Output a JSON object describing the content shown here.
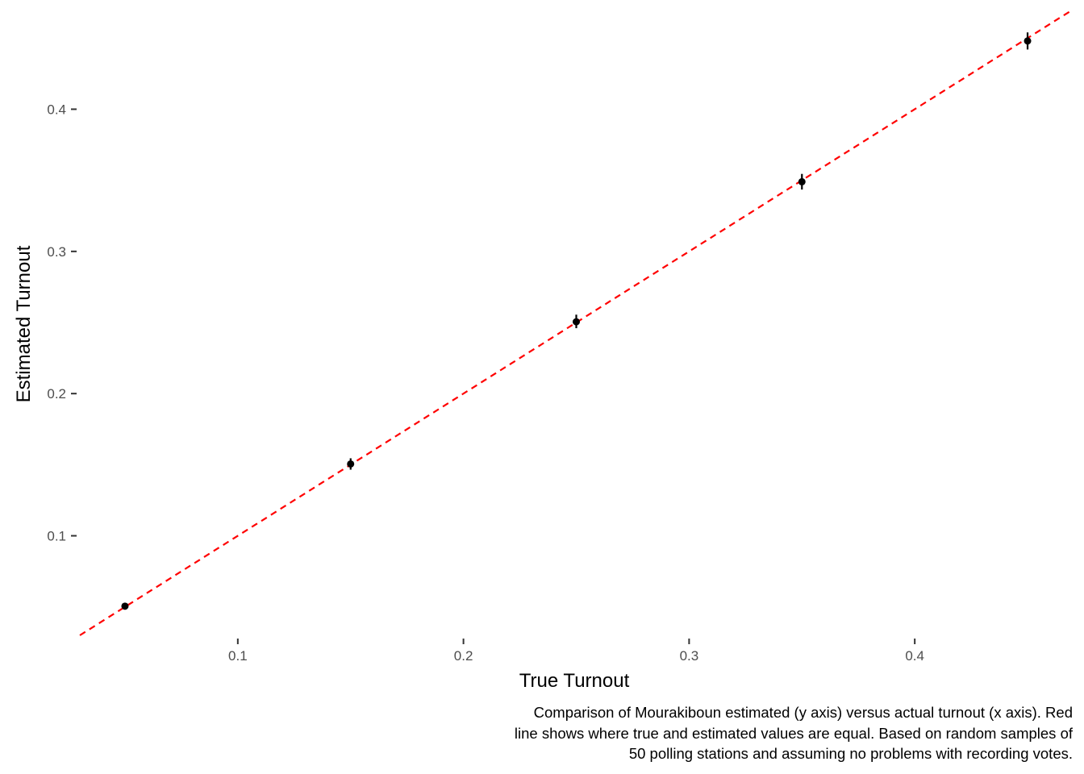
{
  "chart_data": {
    "type": "scatter",
    "xlabel": "True Turnout",
    "ylabel": "Estimated Turnout",
    "caption_lines": [
      "Comparison of Mourakiboun estimated (y axis) versus actual turnout (x axis). Red",
      "line shows where true and estimated values are equal. Based on random samples of",
      "50 polling stations and assuming no problems with recording votes."
    ],
    "xlim": [
      0.03,
      0.47
    ],
    "ylim": [
      0.03,
      0.47
    ],
    "x_ticks": [
      0.1,
      0.2,
      0.3,
      0.4
    ],
    "x_tick_labels": [
      "0.1",
      "0.2",
      "0.3",
      "0.4"
    ],
    "y_ticks": [
      0.1,
      0.2,
      0.3,
      0.4
    ],
    "y_tick_labels": [
      "0.1",
      "0.2",
      "0.3",
      "0.4"
    ],
    "grid": false,
    "points": [
      {
        "x": 0.05,
        "y": 0.0505,
        "ymin": 0.0485,
        "ymax": 0.0525
      },
      {
        "x": 0.15,
        "y": 0.1505,
        "ymin": 0.1465,
        "ymax": 0.1545
      },
      {
        "x": 0.25,
        "y": 0.2505,
        "ymin": 0.246,
        "ymax": 0.2555
      },
      {
        "x": 0.35,
        "y": 0.349,
        "ymin": 0.3435,
        "ymax": 0.3545
      },
      {
        "x": 0.45,
        "y": 0.448,
        "ymin": 0.442,
        "ymax": 0.454
      }
    ],
    "reference_line": {
      "slope": 1,
      "intercept": 0,
      "style": "dashed",
      "color": "#ff0000"
    },
    "point_color": "#000000",
    "tick_color": "#333333"
  }
}
